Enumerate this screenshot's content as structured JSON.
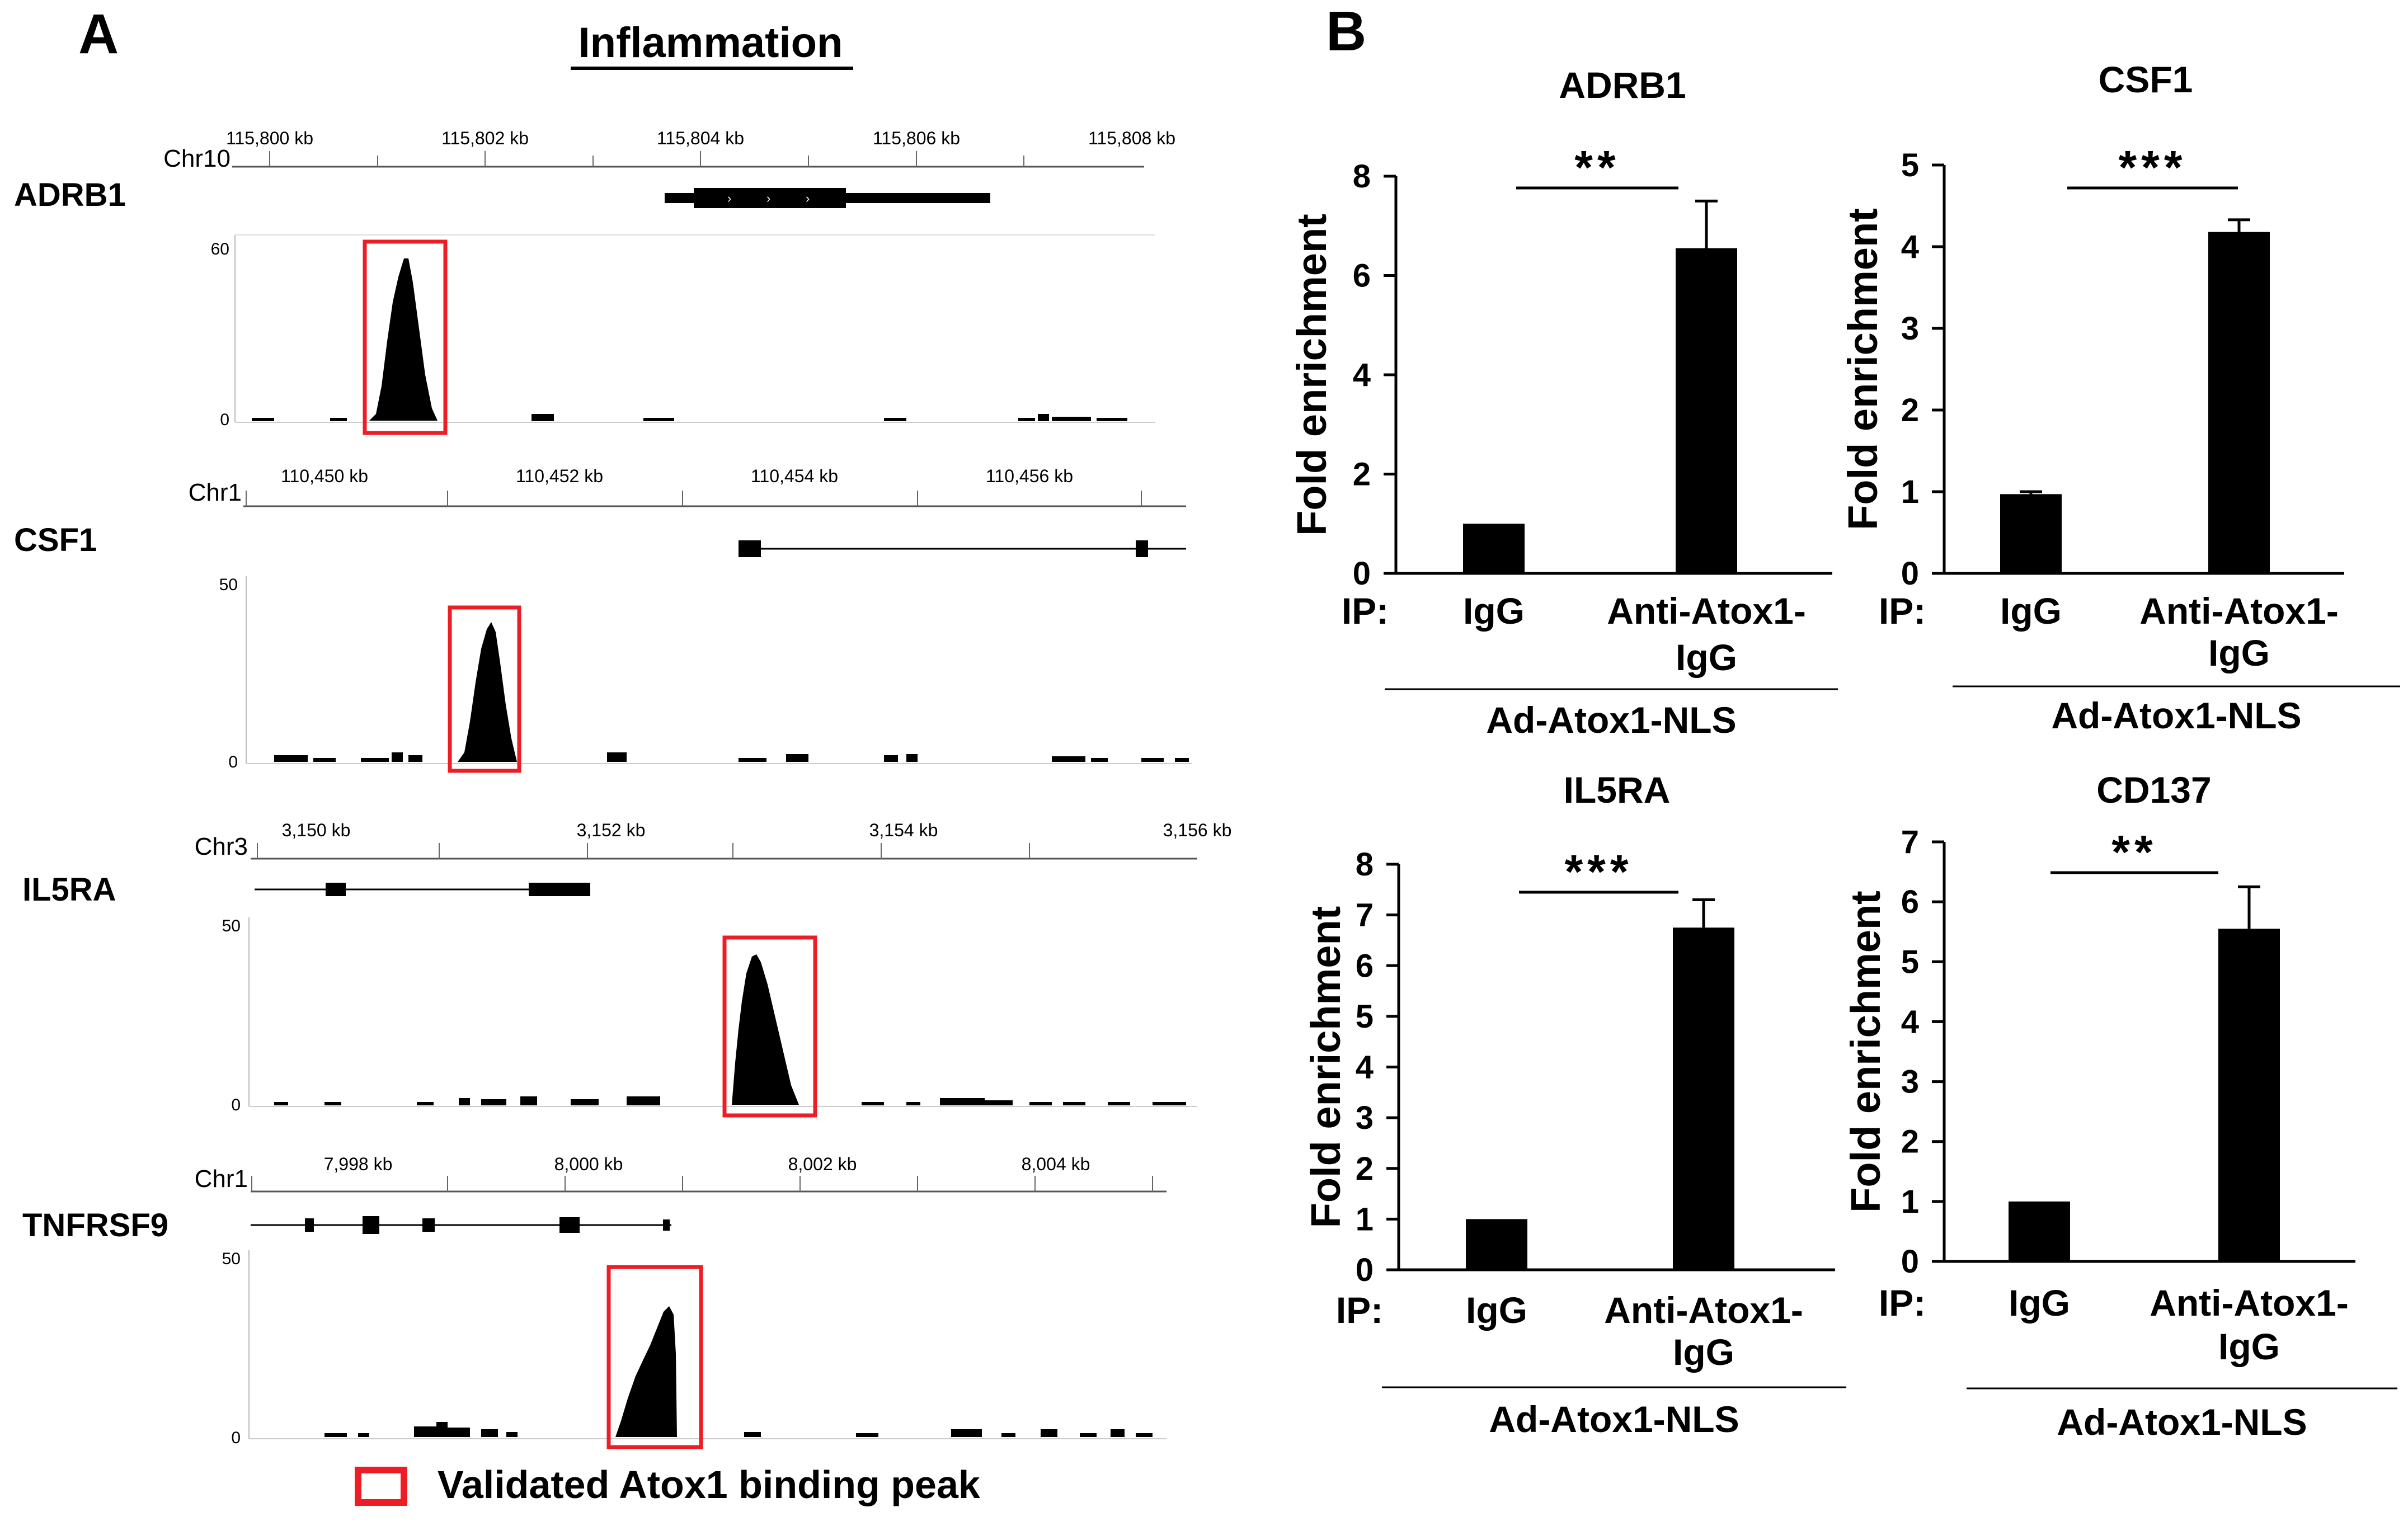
{
  "panel_a": {
    "label": "A",
    "title": "Inflammation",
    "tracks": [
      {
        "gene": "ADRB1",
        "chrom": "Chr10",
        "ticks": [
          "115,800 kb",
          "115,802 kb",
          "115,804 kb",
          "115,806 kb",
          "115,808 kb"
        ],
        "ymax": "60",
        "ymin": "0"
      },
      {
        "gene": "CSF1",
        "chrom": "Chr1",
        "ticks": [
          "110,450 kb",
          "110,452 kb",
          "110,454 kb",
          "110,456 kb"
        ],
        "ymax": "50",
        "ymin": "0"
      },
      {
        "gene": "IL5RA",
        "chrom": "Chr3",
        "ticks": [
          "3,150 kb",
          "3,152 kb",
          "3,154 kb",
          "3,156 kb"
        ],
        "ymax": "50",
        "ymin": "0"
      },
      {
        "gene": "TNFRSF9",
        "chrom": "Chr1",
        "ticks": [
          "7,998 kb",
          "8,000 kb",
          "8,002 kb",
          "8,004 kb"
        ],
        "ymax": "50",
        "ymin": "0"
      }
    ],
    "legend": "Validated Atox1 binding peak",
    "highlight_color": "#ee1c25"
  },
  "panel_b": {
    "label": "B",
    "ip_label": "IP:",
    "group_label": "Ad-Atox1-NLS",
    "categories": [
      "IgG",
      "Anti-Atox1-IgG"
    ],
    "cat2_line1": "Anti-Atox1-",
    "cat2_line2": "IgG"
  },
  "chart_data": [
    {
      "type": "bar",
      "title": "ADRB1",
      "categories": [
        "IgG",
        "Anti-Atox1-IgG"
      ],
      "values": [
        1.0,
        6.55
      ],
      "errors": [
        0,
        0.95
      ],
      "ylabel": "Fold enrichment",
      "ylim": [
        0,
        8
      ],
      "yticks": [
        "0",
        "2",
        "4",
        "6",
        "8"
      ],
      "significance": "**"
    },
    {
      "type": "bar",
      "title": "CSF1",
      "categories": [
        "IgG",
        "Anti-Atox1-IgG"
      ],
      "values": [
        0.97,
        4.18
      ],
      "errors": [
        0.03,
        0.15
      ],
      "ylabel": "Fold enrichment",
      "ylim": [
        0,
        5
      ],
      "yticks": [
        "0",
        "1",
        "2",
        "3",
        "4",
        "5"
      ],
      "significance": "***"
    },
    {
      "type": "bar",
      "title": "IL5RA",
      "categories": [
        "IgG",
        "Anti-Atox1-IgG"
      ],
      "values": [
        1.0,
        6.75
      ],
      "errors": [
        0,
        0.55
      ],
      "ylabel": "Fold enrichment",
      "ylim": [
        0,
        8
      ],
      "yticks": [
        "0",
        "1",
        "2",
        "3",
        "4",
        "5",
        "6",
        "7",
        "8"
      ],
      "significance": "***"
    },
    {
      "type": "bar",
      "title": "CD137",
      "categories": [
        "IgG",
        "Anti-Atox1-IgG"
      ],
      "values": [
        1.0,
        5.55
      ],
      "errors": [
        0,
        0.7
      ],
      "ylabel": "Fold enrichment",
      "ylim": [
        0,
        7
      ],
      "yticks": [
        "0",
        "1",
        "2",
        "3",
        "4",
        "5",
        "6",
        "7"
      ],
      "significance": "**"
    }
  ]
}
